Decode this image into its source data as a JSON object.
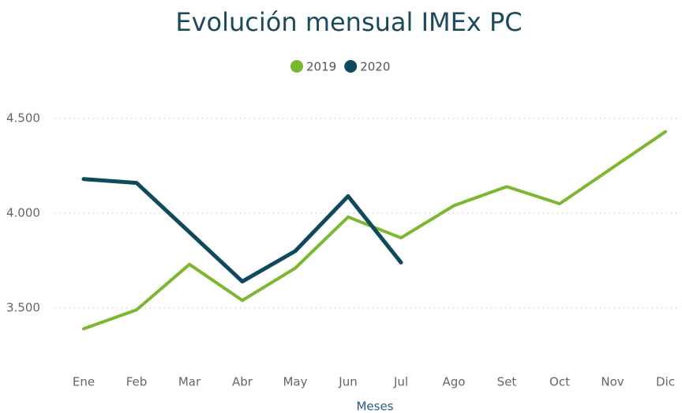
{
  "chart_data": {
    "type": "line",
    "title": "Evolución mensual IMEx PC",
    "categories": [
      "Ene",
      "Feb",
      "Mar",
      "Abr",
      "May",
      "Jun",
      "Jul",
      "Ago",
      "Set",
      "Oct",
      "Nov",
      "Dic"
    ],
    "series": [
      {
        "name": "2019",
        "color": "#7cb82f",
        "values": [
          3390,
          3490,
          3730,
          3540,
          3710,
          3980,
          3870,
          4040,
          4140,
          4050,
          4240,
          4430
        ]
      },
      {
        "name": "2020",
        "color": "#0e4a5c",
        "values": [
          4180,
          4160,
          3900,
          3640,
          3800,
          4090,
          3740,
          null,
          null,
          null,
          null,
          null
        ]
      }
    ],
    "x_label": "Meses",
    "ylim": [
      3200,
      4600
    ],
    "yticks": [
      {
        "value": 3500,
        "label": "3.500"
      },
      {
        "value": 4000,
        "label": "4.000"
      },
      {
        "value": 4500,
        "label": "4.500"
      }
    ],
    "grid": true,
    "legend": "top"
  }
}
